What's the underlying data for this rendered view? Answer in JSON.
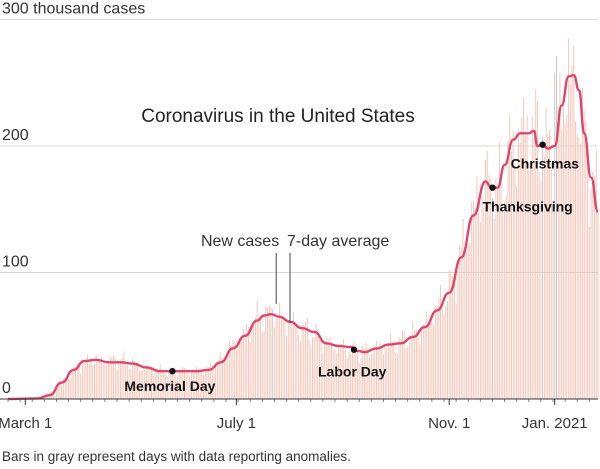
{
  "chart_data": {
    "type": "bar",
    "title": "Coronavirus in the United States",
    "ylabel": "",
    "y_tick_labels": [
      "0",
      "100",
      "200",
      "300 thousand cases"
    ],
    "y_tick_values": [
      0,
      100,
      200,
      300
    ],
    "ylim": [
      0,
      300
    ],
    "grid": true,
    "x_tick_labels": [
      "March 1",
      "July 1",
      "Nov. 1",
      "Jan. 2021"
    ],
    "x_tick_dates": [
      "2020-03-01",
      "2020-07-01",
      "2020-11-01",
      "2021-01-01"
    ],
    "x_range": [
      "2020-02-20",
      "2021-01-26"
    ],
    "series": [
      {
        "name": "New cases",
        "type": "bar",
        "color": "#f2c6b8",
        "anomaly_color": "#c8c8c8",
        "anchors": [
          [
            "2020-02-20",
            0
          ],
          [
            "2020-03-05",
            0.3
          ],
          [
            "2020-03-12",
            2
          ],
          [
            "2020-03-19",
            8
          ],
          [
            "2020-03-26",
            18
          ],
          [
            "2020-04-01",
            26
          ],
          [
            "2020-04-08",
            31
          ],
          [
            "2020-04-15",
            30
          ],
          [
            "2020-04-24",
            31
          ],
          [
            "2020-05-01",
            28
          ],
          [
            "2020-05-10",
            25
          ],
          [
            "2020-05-20",
            22
          ],
          [
            "2020-05-28",
            22
          ],
          [
            "2020-06-06",
            22
          ],
          [
            "2020-06-14",
            23
          ],
          [
            "2020-06-21",
            29
          ],
          [
            "2020-06-28",
            41
          ],
          [
            "2020-07-05",
            50
          ],
          [
            "2020-07-12",
            62
          ],
          [
            "2020-07-19",
            66
          ],
          [
            "2020-07-26",
            65
          ],
          [
            "2020-08-03",
            58
          ],
          [
            "2020-08-10",
            55
          ],
          [
            "2020-08-17",
            49
          ],
          [
            "2020-08-25",
            42
          ],
          [
            "2020-09-02",
            40
          ],
          [
            "2020-09-10",
            37
          ],
          [
            "2020-09-17",
            39
          ],
          [
            "2020-09-25",
            43
          ],
          [
            "2020-10-02",
            44
          ],
          [
            "2020-10-10",
            50
          ],
          [
            "2020-10-18",
            58
          ],
          [
            "2020-10-25",
            72
          ],
          [
            "2020-11-01",
            85
          ],
          [
            "2020-11-08",
            115
          ],
          [
            "2020-11-15",
            148
          ],
          [
            "2020-11-22",
            172
          ],
          [
            "2020-11-29",
            160
          ],
          [
            "2020-12-06",
            192
          ],
          [
            "2020-12-13",
            212
          ],
          [
            "2020-12-20",
            211
          ],
          [
            "2020-12-27",
            190
          ],
          [
            "2021-01-03",
            215
          ],
          [
            "2021-01-09",
            258
          ],
          [
            "2021-01-15",
            228
          ],
          [
            "2021-01-21",
            185
          ],
          [
            "2021-01-26",
            152
          ]
        ],
        "anomaly_dates": [
          "2020-07-22",
          "2020-11-26",
          "2020-12-25",
          "2021-01-01",
          "2021-01-02"
        ]
      },
      {
        "name": "7-day average",
        "type": "line",
        "color": "#e0456b",
        "points": [
          [
            "2020-02-20",
            0
          ],
          [
            "2020-03-08",
            0.5
          ],
          [
            "2020-03-15",
            3
          ],
          [
            "2020-03-22",
            13
          ],
          [
            "2020-03-29",
            23
          ],
          [
            "2020-04-04",
            30
          ],
          [
            "2020-04-11",
            31
          ],
          [
            "2020-04-18",
            29
          ],
          [
            "2020-04-25",
            29
          ],
          [
            "2020-05-02",
            28
          ],
          [
            "2020-05-10",
            25
          ],
          [
            "2020-05-18",
            22
          ],
          [
            "2020-05-25",
            22
          ],
          [
            "2020-06-01",
            22
          ],
          [
            "2020-06-08",
            22
          ],
          [
            "2020-06-15",
            23
          ],
          [
            "2020-06-22",
            29
          ],
          [
            "2020-06-29",
            40
          ],
          [
            "2020-07-06",
            50
          ],
          [
            "2020-07-13",
            62
          ],
          [
            "2020-07-17",
            66
          ],
          [
            "2020-07-21",
            67
          ],
          [
            "2020-07-26",
            65
          ],
          [
            "2020-08-01",
            61
          ],
          [
            "2020-08-08",
            56
          ],
          [
            "2020-08-15",
            53
          ],
          [
            "2020-08-22",
            44
          ],
          [
            "2020-08-29",
            42
          ],
          [
            "2020-09-05",
            41
          ],
          [
            "2020-09-09",
            38
          ],
          [
            "2020-09-13",
            37
          ],
          [
            "2020-09-20",
            40
          ],
          [
            "2020-09-27",
            43
          ],
          [
            "2020-10-04",
            44
          ],
          [
            "2020-10-11",
            49
          ],
          [
            "2020-10-18",
            57
          ],
          [
            "2020-10-25",
            70
          ],
          [
            "2020-11-01",
            84
          ],
          [
            "2020-11-08",
            112
          ],
          [
            "2020-11-15",
            145
          ],
          [
            "2020-11-22",
            172
          ],
          [
            "2020-11-25",
            168
          ],
          [
            "2020-11-29",
            167
          ],
          [
            "2020-12-03",
            185
          ],
          [
            "2020-12-08",
            205
          ],
          [
            "2020-12-12",
            210
          ],
          [
            "2020-12-17",
            210
          ],
          [
            "2020-12-20",
            212
          ],
          [
            "2020-12-22",
            200
          ],
          [
            "2020-12-25",
            201
          ],
          [
            "2020-12-28",
            198
          ],
          [
            "2021-01-01",
            200
          ],
          [
            "2021-01-05",
            232
          ],
          [
            "2021-01-09",
            255
          ],
          [
            "2021-01-12",
            256
          ],
          [
            "2021-01-15",
            244
          ],
          [
            "2021-01-18",
            210
          ],
          [
            "2021-01-22",
            175
          ],
          [
            "2021-01-26",
            148
          ]
        ]
      }
    ],
    "annotations": [
      {
        "label": "Memorial Day",
        "date": "2020-05-25",
        "value": 22,
        "style": "bold"
      },
      {
        "label": "Labor Day",
        "date": "2020-09-07",
        "value": 39,
        "style": "bold"
      },
      {
        "label": "Thanksgiving",
        "date": "2020-11-26",
        "value": 167,
        "style": "bold"
      },
      {
        "label": "Christmas",
        "date": "2020-12-25",
        "value": 201,
        "style": "bold"
      },
      {
        "label": "New cases",
        "date": "2020-07-24",
        "value": 75,
        "style": "light"
      },
      {
        "label": "7-day average",
        "date": "2020-08-01",
        "value": 60,
        "style": "light"
      }
    ],
    "footnote": "Bars in gray represent days with data reporting anomalies."
  }
}
